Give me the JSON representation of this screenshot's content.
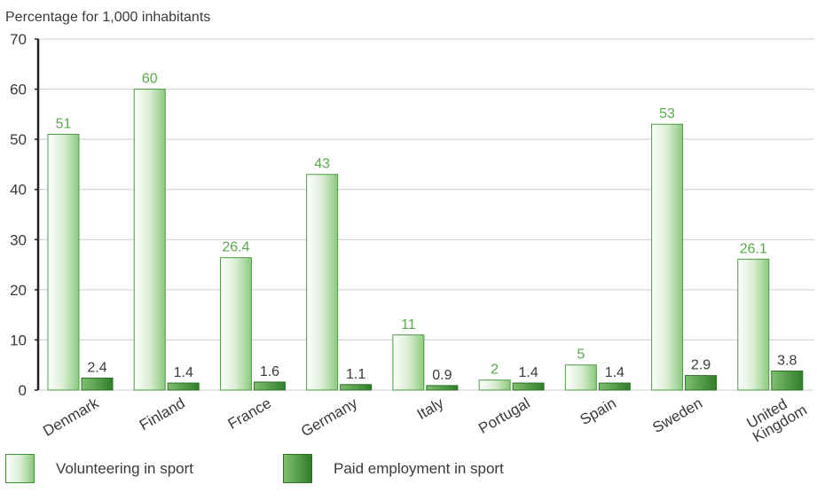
{
  "chart_data": {
    "type": "bar",
    "title": "Percentage for 1,000 inhabitants",
    "categories": [
      "Denmark",
      "Finland",
      "France",
      "Germany",
      "Italy",
      "Portugal",
      "Spain",
      "Sweden",
      "United Kingdom"
    ],
    "series": [
      {
        "name": "Volunteering in sport",
        "values": [
          51,
          60,
          26.4,
          43,
          11,
          2,
          5,
          53,
          26.1
        ],
        "labels": [
          "51",
          "60",
          "26.4",
          "43",
          "11",
          "2",
          "5",
          "53",
          "26.1"
        ],
        "color": "#8cc97f"
      },
      {
        "name": "Paid employment in sport",
        "values": [
          2.4,
          1.4,
          1.6,
          1.1,
          0.9,
          1.4,
          1.4,
          2.9,
          3.8
        ],
        "labels": [
          "2.4",
          "1.4",
          "1.6",
          "1.1",
          "0.9",
          "1.4",
          "1.4",
          "2.9",
          "3.8"
        ],
        "color": "#3f8f35"
      }
    ],
    "ylim": [
      0,
      70
    ],
    "yticks": [
      0,
      10,
      20,
      30,
      40,
      50,
      60,
      70
    ],
    "grid": true,
    "legend_position": "bottom",
    "label_colors": {
      "series1": "#5aa84c",
      "series2": "#3a3a3a"
    }
  }
}
